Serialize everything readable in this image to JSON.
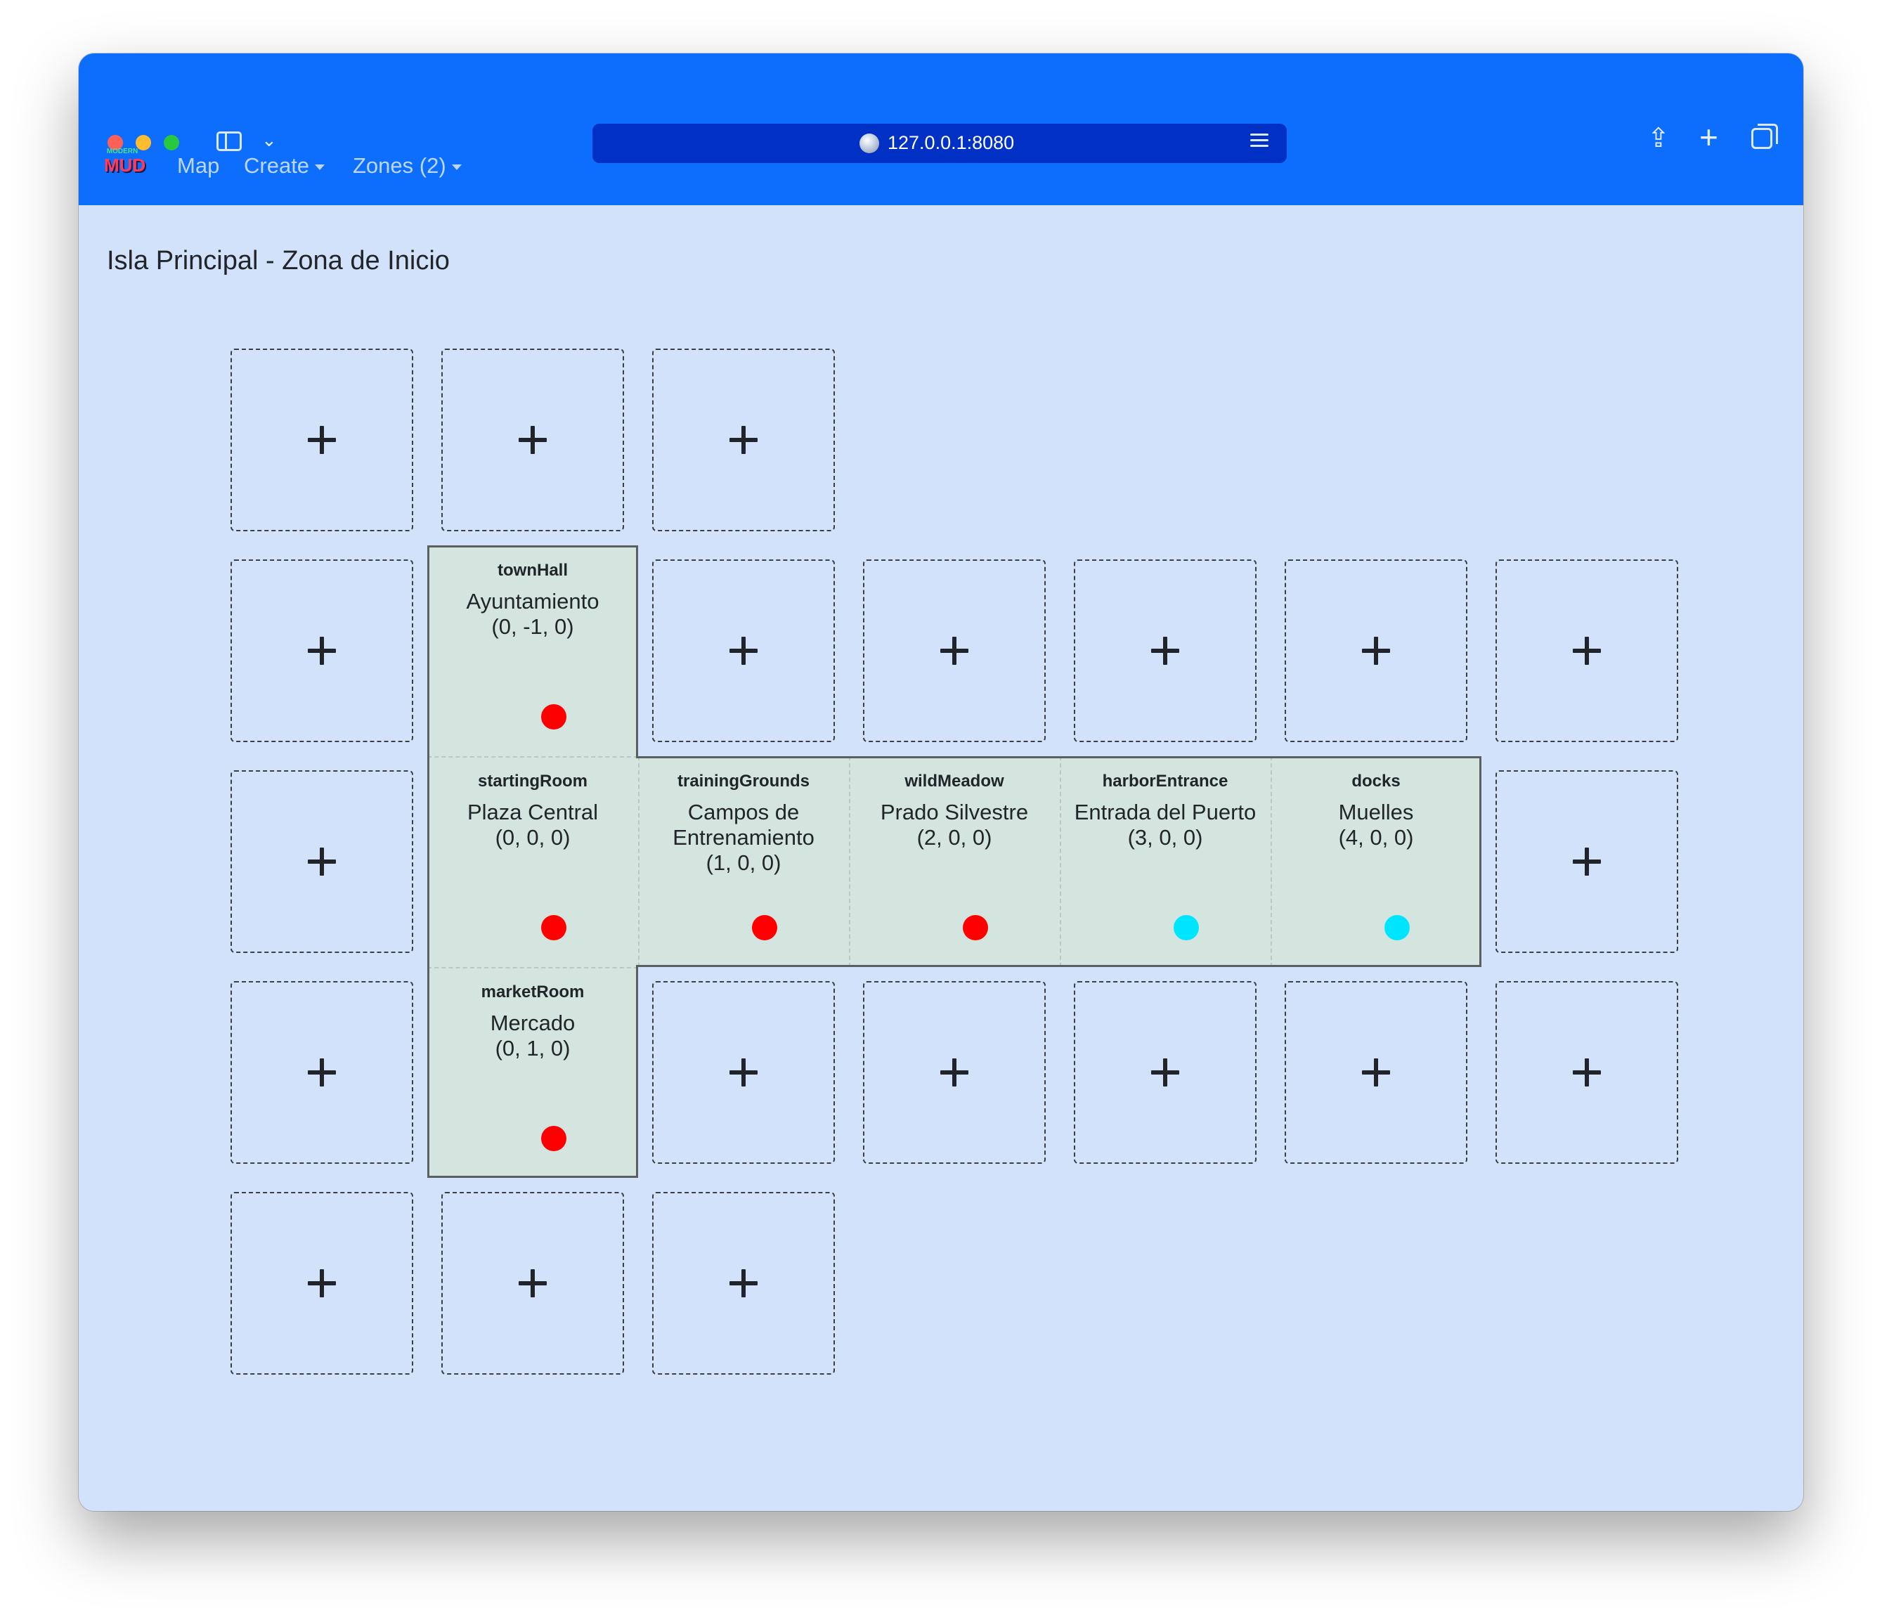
{
  "browser": {
    "url": "127.0.0.1:8080"
  },
  "navbar": {
    "logo_small": "MODERN",
    "logo_big": "MUD",
    "items": [
      {
        "label": "Map",
        "dropdown": false
      },
      {
        "label": "Create",
        "dropdown": true
      },
      {
        "label": "Zones (2)",
        "dropdown": true
      }
    ]
  },
  "zone": {
    "title": "Isla Principal - Zona de Inicio"
  },
  "rooms": [
    {
      "id": "townHall",
      "name": "Ayuntamiento",
      "coords": "(0, -1, 0)",
      "dot_color": "#ff0000"
    },
    {
      "id": "startingRoom",
      "name": "Plaza Central",
      "coords": "(0, 0, 0)",
      "dot_color": "#ff0000"
    },
    {
      "id": "trainingGrounds",
      "name": "Campos de Entrenamiento",
      "coords": "(1, 0, 0)",
      "dot_color": "#ff0000"
    },
    {
      "id": "wildMeadow",
      "name": "Prado Silvestre",
      "coords": "(2, 0, 0)",
      "dot_color": "#ff0000"
    },
    {
      "id": "harborEntrance",
      "name": "Entrada del Puerto",
      "coords": "(3, 0, 0)",
      "dot_color": "#00e5ff"
    },
    {
      "id": "docks",
      "name": "Muelles",
      "coords": "(4, 0, 0)",
      "dot_color": "#00e5ff"
    },
    {
      "id": "marketRoom",
      "name": "Mercado",
      "coords": "(0, 1, 0)",
      "dot_color": "#ff0000"
    }
  ],
  "add_room_symbol": "+"
}
